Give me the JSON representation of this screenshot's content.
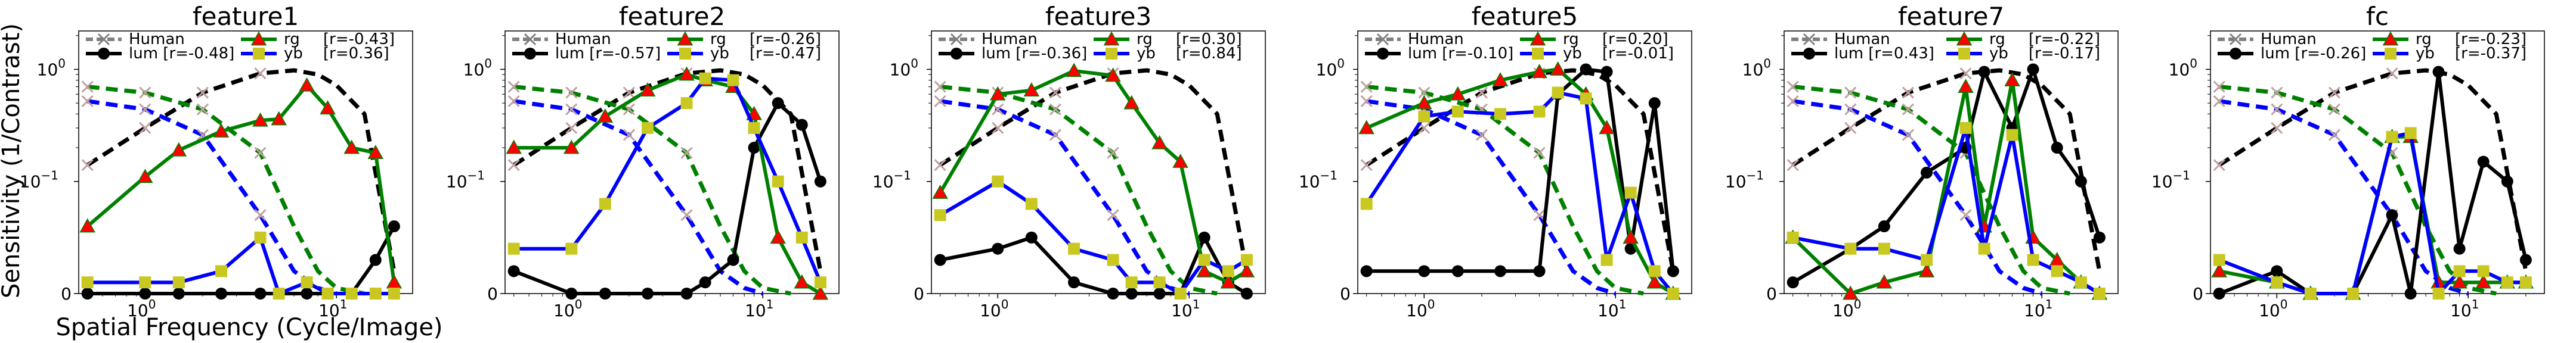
{
  "figure": {
    "ylabel": "Sensitivity (1/Contrast)",
    "xlabel": "Spatial Frequency (Cycle/Image)"
  },
  "legend": {
    "human": "Human",
    "lum_prefix": "lum",
    "rg_prefix": "rg",
    "yb_prefix": "yb"
  },
  "chart_data": [
    {
      "type": "line",
      "title": "feature1",
      "x_scale": "log",
      "y_scale": "symlog",
      "xlim": [
        0.45,
        25
      ],
      "ylim": [
        0,
        2.2
      ],
      "legend_placement": "top",
      "corr": {
        "lum": "[r=-0.48]",
        "rg": "[r=-0.43]",
        "yb": "[r=0.36]"
      },
      "x": [
        0.5,
        1,
        1.5,
        2.5,
        4,
        5,
        7,
        9,
        12,
        16,
        20
      ],
      "series": [
        {
          "name": "lum",
          "color": "#000000",
          "values": [
            0.0,
            0.0,
            0.0,
            0.0,
            0.0,
            0.0,
            0.0,
            0.0,
            0.0,
            0.03,
            0.06
          ]
        },
        {
          "name": "rg",
          "color": "#008000",
          "marker_color": "#ff0000",
          "values": [
            0.06,
            0.11,
            0.19,
            0.28,
            0.35,
            0.36,
            0.72,
            0.45,
            0.2,
            0.18,
            0.01
          ]
        },
        {
          "name": "yb",
          "color": "#0000ff",
          "marker_color": "#c8c820",
          "values": [
            0.01,
            0.01,
            0.01,
            0.02,
            0.05,
            0.0,
            0.01,
            0.0,
            0.0,
            0.0,
            0.0
          ]
        }
      ],
      "human_lum": {
        "x": [
          0.5,
          1,
          2,
          4,
          6,
          8,
          10,
          14,
          20
        ],
        "values": [
          0.14,
          0.3,
          0.62,
          0.92,
          0.98,
          0.9,
          0.72,
          0.4,
          0.02
        ]
      },
      "human_rg": {
        "x": [
          0.5,
          1,
          2,
          4,
          6,
          8,
          10,
          14
        ],
        "values": [
          0.7,
          0.62,
          0.44,
          0.18,
          0.06,
          0.02,
          0.005,
          0.0
        ]
      },
      "human_yb": {
        "x": [
          0.5,
          1,
          2,
          4,
          6,
          8,
          10
        ],
        "values": [
          0.52,
          0.44,
          0.26,
          0.07,
          0.02,
          0.005,
          0.0
        ]
      }
    },
    {
      "type": "line",
      "title": "feature2",
      "x_scale": "log",
      "y_scale": "symlog",
      "xlim": [
        0.45,
        25
      ],
      "ylim": [
        0,
        2.2
      ],
      "legend_placement": "top",
      "corr": {
        "lum": "[r=-0.57]",
        "rg": "[r=-0.26]",
        "yb": "[r=-0.47]"
      },
      "x": [
        0.5,
        1,
        1.5,
        2.5,
        4,
        5,
        7,
        9,
        12,
        16,
        20
      ],
      "series": [
        {
          "name": "lum",
          "color": "#000000",
          "values": [
            0.02,
            0.0,
            0.0,
            0.0,
            0.0,
            0.01,
            0.03,
            0.2,
            0.5,
            0.32,
            0.1
          ]
        },
        {
          "name": "rg",
          "color": "#008000",
          "marker_color": "#ff0000",
          "values": [
            0.2,
            0.2,
            0.38,
            0.65,
            0.9,
            0.8,
            0.7,
            0.4,
            0.05,
            0.01,
            0.0
          ]
        },
        {
          "name": "yb",
          "color": "#0000ff",
          "marker_color": "#c8c820",
          "values": [
            0.04,
            0.04,
            0.08,
            0.3,
            0.5,
            0.83,
            0.8,
            0.3,
            0.1,
            0.05,
            0.01
          ]
        }
      ],
      "human_lum": {
        "x": [
          0.5,
          1,
          2,
          4,
          6,
          8,
          10,
          14,
          20
        ],
        "values": [
          0.14,
          0.3,
          0.62,
          0.92,
          0.98,
          0.9,
          0.72,
          0.4,
          0.02
        ]
      },
      "human_rg": {
        "x": [
          0.5,
          1,
          2,
          4,
          6,
          8,
          10,
          14
        ],
        "values": [
          0.7,
          0.62,
          0.44,
          0.18,
          0.06,
          0.02,
          0.005,
          0.0
        ]
      },
      "human_yb": {
        "x": [
          0.5,
          1,
          2,
          4,
          6,
          8,
          10
        ],
        "values": [
          0.52,
          0.44,
          0.26,
          0.07,
          0.02,
          0.005,
          0.0
        ]
      }
    },
    {
      "type": "line",
      "title": "feature3",
      "x_scale": "log",
      "y_scale": "symlog",
      "xlim": [
        0.45,
        25
      ],
      "ylim": [
        0,
        2.2
      ],
      "legend_placement": "top",
      "corr": {
        "lum": "[r=-0.36]",
        "rg": "[r=0.30]",
        "yb": "[r=0.84]"
      },
      "x": [
        0.5,
        1,
        1.5,
        2.5,
        4,
        5,
        7,
        9,
        12,
        16,
        20
      ],
      "series": [
        {
          "name": "lum",
          "color": "#000000",
          "values": [
            0.03,
            0.04,
            0.05,
            0.01,
            0.0,
            0.0,
            0.0,
            0.0,
            0.05,
            0.01,
            0.0
          ]
        },
        {
          "name": "rg",
          "color": "#008000",
          "marker_color": "#ff0000",
          "values": [
            0.09,
            0.6,
            0.65,
            0.97,
            0.88,
            0.5,
            0.22,
            0.15,
            0.02,
            0.01,
            0.02
          ]
        },
        {
          "name": "yb",
          "color": "#0000ff",
          "marker_color": "#c8c820",
          "values": [
            0.07,
            0.1,
            0.08,
            0.04,
            0.03,
            0.01,
            0.01,
            0.0,
            0.03,
            0.02,
            0.03
          ]
        }
      ],
      "human_lum": {
        "x": [
          0.5,
          1,
          2,
          4,
          6,
          8,
          10,
          14,
          20
        ],
        "values": [
          0.14,
          0.3,
          0.62,
          0.92,
          0.98,
          0.9,
          0.72,
          0.4,
          0.02
        ]
      },
      "human_rg": {
        "x": [
          0.5,
          1,
          2,
          4,
          6,
          8,
          10,
          14
        ],
        "values": [
          0.7,
          0.62,
          0.44,
          0.18,
          0.06,
          0.02,
          0.005,
          0.0
        ]
      },
      "human_yb": {
        "x": [
          0.5,
          1,
          2,
          4,
          6,
          8,
          10
        ],
        "values": [
          0.52,
          0.44,
          0.26,
          0.07,
          0.02,
          0.005,
          0.0
        ]
      }
    },
    {
      "type": "line",
      "title": "feature5",
      "x_scale": "log",
      "y_scale": "symlog",
      "xlim": [
        0.45,
        25
      ],
      "ylim": [
        0,
        2.2
      ],
      "legend_placement": "top",
      "corr": {
        "lum": "[r=-0.10]",
        "rg": "[r=0.20]",
        "yb": "[r=-0.01]"
      },
      "x": [
        0.5,
        1,
        1.5,
        2.5,
        4,
        5,
        7,
        9,
        12,
        16,
        20
      ],
      "series": [
        {
          "name": "lum",
          "color": "#000000",
          "values": [
            0.02,
            0.02,
            0.02,
            0.02,
            0.02,
            0.6,
            1.0,
            0.95,
            0.04,
            0.5,
            0.02
          ]
        },
        {
          "name": "rg",
          "color": "#008000",
          "marker_color": "#ff0000",
          "values": [
            0.3,
            0.5,
            0.6,
            0.8,
            0.95,
            1.0,
            0.6,
            0.3,
            0.05,
            0.01,
            0.0
          ]
        },
        {
          "name": "yb",
          "color": "#0000ff",
          "marker_color": "#c8c820",
          "values": [
            0.08,
            0.38,
            0.42,
            0.4,
            0.42,
            0.62,
            0.55,
            0.03,
            0.09,
            0.02,
            0.0
          ]
        }
      ],
      "human_lum": {
        "x": [
          0.5,
          1,
          2,
          4,
          6,
          8,
          10,
          14,
          20
        ],
        "values": [
          0.14,
          0.3,
          0.62,
          0.92,
          0.98,
          0.9,
          0.72,
          0.4,
          0.02
        ]
      },
      "human_rg": {
        "x": [
          0.5,
          1,
          2,
          4,
          6,
          8,
          10,
          14
        ],
        "values": [
          0.7,
          0.62,
          0.44,
          0.18,
          0.06,
          0.02,
          0.005,
          0.0
        ]
      },
      "human_yb": {
        "x": [
          0.5,
          1,
          2,
          4,
          6,
          8,
          10
        ],
        "values": [
          0.52,
          0.44,
          0.26,
          0.07,
          0.02,
          0.005,
          0.0
        ]
      }
    },
    {
      "type": "line",
      "title": "feature7",
      "x_scale": "log",
      "y_scale": "symlog",
      "xlim": [
        0.45,
        25
      ],
      "ylim": [
        0,
        2.2
      ],
      "legend_placement": "top",
      "corr": {
        "lum": "[r=0.43]",
        "rg": "[r=-0.22]",
        "yb": "[r=-0.17]"
      },
      "x": [
        0.5,
        1,
        1.5,
        2.5,
        4,
        5,
        7,
        9,
        12,
        16,
        20
      ],
      "series": [
        {
          "name": "lum",
          "color": "#000000",
          "values": [
            0.01,
            0.04,
            0.06,
            0.12,
            0.2,
            0.95,
            0.3,
            1.0,
            0.2,
            0.1,
            0.05
          ]
        },
        {
          "name": "rg",
          "color": "#008000",
          "marker_color": "#ff0000",
          "values": [
            0.05,
            0.0,
            0.01,
            0.02,
            0.7,
            0.06,
            0.8,
            0.05,
            0.03,
            0.01,
            0.0
          ]
        },
        {
          "name": "yb",
          "color": "#0000ff",
          "marker_color": "#c8c820",
          "values": [
            0.05,
            0.04,
            0.04,
            0.03,
            0.3,
            0.04,
            0.26,
            0.03,
            0.02,
            0.01,
            0.0
          ]
        }
      ],
      "human_lum": {
        "x": [
          0.5,
          1,
          2,
          4,
          6,
          8,
          10,
          14,
          20
        ],
        "values": [
          0.14,
          0.3,
          0.62,
          0.92,
          0.98,
          0.9,
          0.72,
          0.4,
          0.02
        ]
      },
      "human_rg": {
        "x": [
          0.5,
          1,
          2,
          4,
          6,
          8,
          10,
          14
        ],
        "values": [
          0.7,
          0.62,
          0.44,
          0.18,
          0.06,
          0.02,
          0.005,
          0.0
        ]
      },
      "human_yb": {
        "x": [
          0.5,
          1,
          2,
          4,
          6,
          8,
          10
        ],
        "values": [
          0.52,
          0.44,
          0.26,
          0.07,
          0.02,
          0.005,
          0.0
        ]
      }
    },
    {
      "type": "line",
      "title": "fc",
      "x_scale": "log",
      "y_scale": "symlog",
      "xlim": [
        0.45,
        25
      ],
      "ylim": [
        0,
        2.2
      ],
      "legend_placement": "top",
      "corr": {
        "lum": "[r=-0.26]",
        "rg": "[r=-0.23]",
        "yb": "[r=-0.37]"
      },
      "x": [
        0.5,
        1,
        1.5,
        2.5,
        4,
        5,
        7,
        9,
        12,
        16,
        20
      ],
      "series": [
        {
          "name": "lum",
          "color": "#000000",
          "values": [
            0.0,
            0.02,
            0.0,
            0.0,
            0.07,
            0.0,
            0.95,
            0.04,
            0.15,
            0.1,
            0.03
          ]
        },
        {
          "name": "rg",
          "color": "#008000",
          "marker_color": "#ff0000",
          "values": [
            0.02,
            0.01,
            0.0,
            0.0,
            0.25,
            0.25,
            0.01,
            0.01,
            0.01,
            0.01,
            0.01
          ]
        },
        {
          "name": "yb",
          "color": "#0000ff",
          "marker_color": "#c8c820",
          "values": [
            0.03,
            0.01,
            0.0,
            0.0,
            0.25,
            0.27,
            0.0,
            0.02,
            0.02,
            0.01,
            0.01
          ]
        }
      ],
      "human_lum": {
        "x": [
          0.5,
          1,
          2,
          4,
          6,
          8,
          10,
          14,
          20
        ],
        "values": [
          0.14,
          0.3,
          0.62,
          0.92,
          0.98,
          0.9,
          0.72,
          0.4,
          0.02
        ]
      },
      "human_rg": {
        "x": [
          0.5,
          1,
          2,
          4,
          6,
          8,
          10,
          14
        ],
        "values": [
          0.7,
          0.62,
          0.44,
          0.18,
          0.06,
          0.02,
          0.005,
          0.0
        ]
      },
      "human_yb": {
        "x": [
          0.5,
          1,
          2,
          4,
          6,
          8,
          10
        ],
        "values": [
          0.52,
          0.44,
          0.26,
          0.07,
          0.02,
          0.005,
          0.0
        ]
      }
    }
  ]
}
